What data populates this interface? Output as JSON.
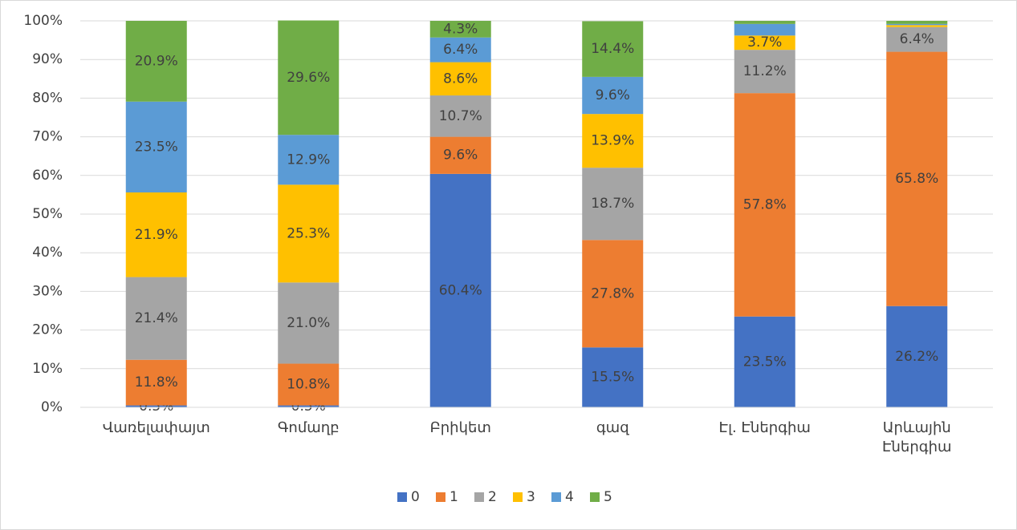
{
  "chart_data": {
    "type": "stacked_bar_100",
    "categories": [
      "Վառելափայտ",
      "Գոմաղբ",
      "Բրիկետ",
      "գազ",
      "Էլ. Էներգիա",
      "Արևային Էներգիա"
    ],
    "series": [
      {
        "name": "0",
        "color": "#4472c4",
        "values": [
          0.5,
          0.5,
          60.4,
          15.5,
          23.5,
          26.2
        ],
        "value_labels": [
          "0.5%",
          "0.5%",
          "60.4%",
          "15.5%",
          "23.5%",
          "26.2%"
        ]
      },
      {
        "name": "1",
        "color": "#ed7d31",
        "values": [
          11.8,
          10.8,
          9.6,
          27.8,
          57.8,
          65.8
        ],
        "value_labels": [
          "11.8%",
          "10.8%",
          "9.6%",
          "27.8%",
          "57.8%",
          "65.8%"
        ]
      },
      {
        "name": "2",
        "color": "#a5a5a5",
        "values": [
          21.4,
          21.0,
          10.7,
          18.7,
          11.2,
          6.4
        ],
        "value_labels": [
          "21.4%",
          "21.0%",
          "10.7%",
          "18.7%",
          "11.2%",
          "6.4%"
        ]
      },
      {
        "name": "3",
        "color": "#ffc000",
        "values": [
          21.9,
          25.3,
          8.6,
          13.9,
          3.7,
          0.5
        ],
        "value_labels": [
          "21.9%",
          "25.3%",
          "8.6%",
          "13.9%",
          "3.7%",
          null
        ]
      },
      {
        "name": "4",
        "color": "#5b9bd5",
        "values": [
          23.5,
          12.9,
          6.4,
          9.6,
          3.0,
          0.3
        ],
        "value_labels": [
          "23.5%",
          "12.9%",
          "6.4%",
          "9.6%",
          null,
          null
        ]
      },
      {
        "name": "5",
        "color": "#70ad47",
        "values": [
          20.9,
          29.6,
          4.3,
          14.4,
          0.8,
          0.8
        ],
        "value_labels": [
          "20.9%",
          "29.6%",
          "4.3%",
          "14.4%",
          null,
          null
        ]
      }
    ],
    "ylim": [
      0,
      100
    ],
    "yticks": [
      {
        "value": 0,
        "label": "0%"
      },
      {
        "value": 10,
        "label": "10%"
      },
      {
        "value": 20,
        "label": "20%"
      },
      {
        "value": 30,
        "label": "30%"
      },
      {
        "value": 40,
        "label": "40%"
      },
      {
        "value": 50,
        "label": "50%"
      },
      {
        "value": 60,
        "label": "60%"
      },
      {
        "value": 70,
        "label": "70%"
      },
      {
        "value": 80,
        "label": "80%"
      },
      {
        "value": 90,
        "label": "90%"
      },
      {
        "value": 100,
        "label": "100%"
      }
    ],
    "grid": true,
    "legend": "bottom"
  }
}
